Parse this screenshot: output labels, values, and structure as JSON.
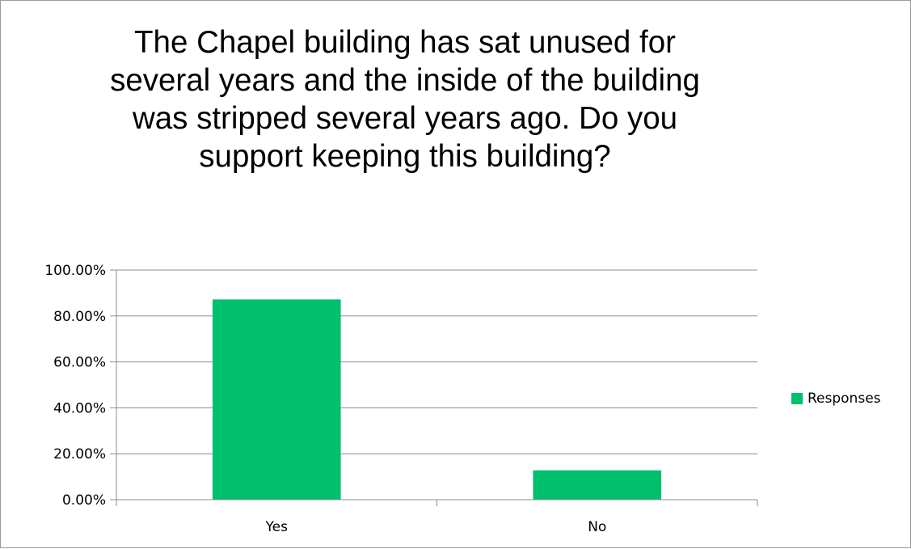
{
  "chart_data": {
    "type": "bar",
    "title": "The Chapel building has sat unused for several years and the inside of the building was stripped several years ago.  Do you support keeping this building?",
    "categories": [
      "Yes",
      "No"
    ],
    "series": [
      {
        "name": "Responses",
        "values": [
          87.2,
          12.8
        ],
        "color": "#00c06e"
      }
    ],
    "ylim": [
      0,
      100
    ],
    "yticks": [
      0,
      20,
      40,
      60,
      80,
      100
    ],
    "ytick_labels": [
      "0.00%",
      "20.00%",
      "40.00%",
      "60.00%",
      "80.00%",
      "100.00%"
    ],
    "grid": true,
    "legend_position": "right"
  }
}
